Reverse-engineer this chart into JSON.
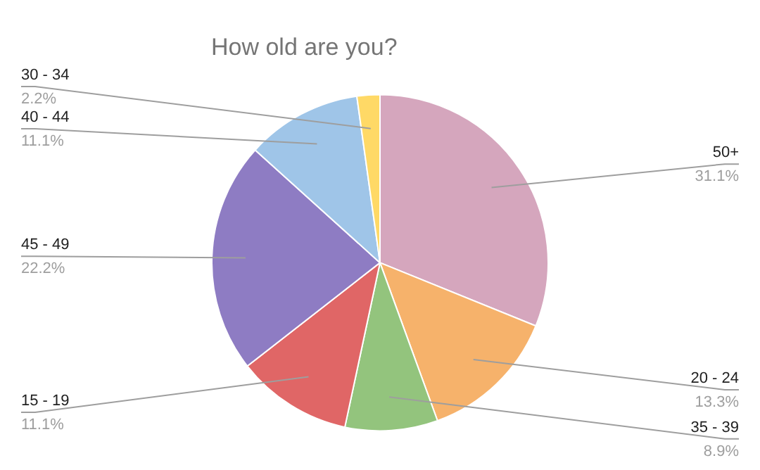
{
  "chart_data": {
    "type": "pie",
    "title": "How old are you?",
    "categories": [
      "50+",
      "20 - 24",
      "35 - 39",
      "15 - 19",
      "45 - 49",
      "40 - 44",
      "30 - 34"
    ],
    "values": [
      31.1,
      13.3,
      8.9,
      11.1,
      22.2,
      11.1,
      2.2
    ],
    "value_labels": [
      "31.1%",
      "13.3%",
      "8.9%",
      "11.1%",
      "22.2%",
      "11.1%",
      "2.2%"
    ],
    "colors": [
      "#d5a6bd",
      "#f6b26b",
      "#93c47d",
      "#e06666",
      "#8e7cc3",
      "#9fc5e8",
      "#ffd966"
    ],
    "legend": false
  }
}
